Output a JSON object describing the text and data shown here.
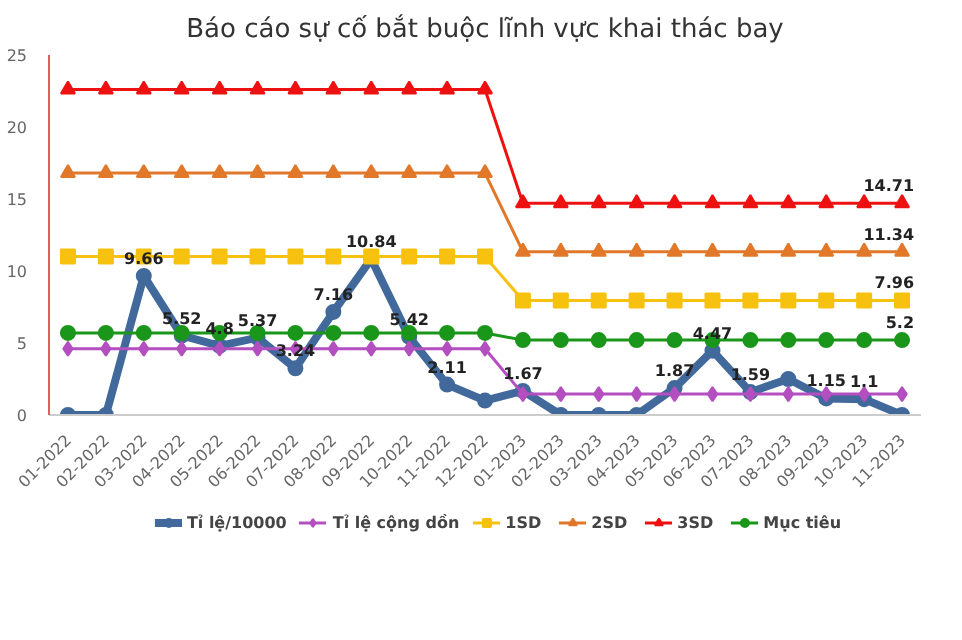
{
  "chart_data": {
    "type": "line",
    "title": "Báo cáo sự cố bắt buộc lĩnh vực khai thác bay",
    "categories": [
      "01-2022",
      "02-2022",
      "03-2022",
      "04-2022",
      "05-2022",
      "06-2022",
      "07-2022",
      "08-2022",
      "09-2022",
      "10-2022",
      "11-2022",
      "12-2022",
      "01-2023",
      "02-2023",
      "03-2023",
      "04-2023",
      "05-2023",
      "06-2023",
      "07-2023",
      "08-2023",
      "09-2023",
      "10-2023",
      "11-2023"
    ],
    "series": [
      {
        "name": "Tỉ lệ/10000",
        "color": "#41699b",
        "marker": "circle",
        "values": [
          0,
          0,
          9.66,
          5.52,
          4.8,
          5.37,
          3.24,
          7.16,
          10.84,
          5.42,
          2.11,
          1.0,
          1.67,
          0,
          0,
          0,
          1.87,
          4.47,
          1.59,
          2.5,
          1.15,
          1.1,
          0
        ],
        "value_labels": [
          null,
          null,
          "9.66",
          "5.52",
          "4.8",
          "5.37",
          "3.24",
          "7.16",
          "10.84",
          "5.42",
          "2.11",
          null,
          "1.67",
          null,
          null,
          null,
          "1.87",
          "4.47",
          "1.59",
          null,
          "1.15",
          "1.1",
          null
        ]
      },
      {
        "name": "Tỉ lệ cộng dồn",
        "color": "#b44fc0",
        "marker": "diamond",
        "values": [
          4.6,
          4.6,
          4.6,
          4.6,
          4.6,
          4.6,
          4.6,
          4.6,
          4.6,
          4.6,
          4.6,
          4.6,
          1.45,
          1.45,
          1.45,
          1.45,
          1.45,
          1.45,
          1.45,
          1.45,
          1.45,
          1.45,
          1.45
        ]
      },
      {
        "name": "1SD",
        "color": "#f7c10f",
        "marker": "square",
        "values": [
          11,
          11,
          11,
          11,
          11,
          11,
          11,
          11,
          11,
          11,
          11,
          11,
          7.96,
          7.96,
          7.96,
          7.96,
          7.96,
          7.96,
          7.96,
          7.96,
          7.96,
          7.96,
          7.96
        ],
        "value_labels": [
          null,
          null,
          null,
          null,
          null,
          null,
          null,
          null,
          null,
          null,
          null,
          null,
          null,
          null,
          null,
          null,
          null,
          null,
          null,
          null,
          null,
          null,
          "7.96"
        ]
      },
      {
        "name": "2SD",
        "color": "#e1782a",
        "marker": "triangle",
        "values": [
          16.8,
          16.8,
          16.8,
          16.8,
          16.8,
          16.8,
          16.8,
          16.8,
          16.8,
          16.8,
          16.8,
          16.8,
          11.34,
          11.34,
          11.34,
          11.34,
          11.34,
          11.34,
          11.34,
          11.34,
          11.34,
          11.34,
          11.34
        ],
        "value_labels": [
          null,
          null,
          null,
          null,
          null,
          null,
          null,
          null,
          null,
          null,
          null,
          null,
          null,
          null,
          null,
          null,
          null,
          null,
          null,
          null,
          null,
          null,
          "11.34"
        ]
      },
      {
        "name": "3SD",
        "color": "#ee1111",
        "marker": "triangle",
        "values": [
          22.6,
          22.6,
          22.6,
          22.6,
          22.6,
          22.6,
          22.6,
          22.6,
          22.6,
          22.6,
          22.6,
          22.6,
          14.71,
          14.71,
          14.71,
          14.71,
          14.71,
          14.71,
          14.71,
          14.71,
          14.71,
          14.71,
          14.71
        ],
        "value_labels": [
          null,
          null,
          null,
          null,
          null,
          null,
          null,
          null,
          null,
          null,
          null,
          null,
          null,
          null,
          null,
          null,
          null,
          null,
          null,
          null,
          null,
          null,
          "14.71"
        ]
      },
      {
        "name": "Mục tiêu",
        "color": "#1a961a",
        "marker": "circle",
        "values": [
          5.7,
          5.7,
          5.7,
          5.7,
          5.7,
          5.7,
          5.7,
          5.7,
          5.7,
          5.7,
          5.7,
          5.7,
          5.2,
          5.2,
          5.2,
          5.2,
          5.2,
          5.2,
          5.2,
          5.2,
          5.2,
          5.2,
          5.2
        ],
        "value_labels": [
          null,
          null,
          null,
          null,
          null,
          null,
          null,
          null,
          null,
          null,
          null,
          null,
          null,
          null,
          null,
          null,
          null,
          null,
          null,
          null,
          null,
          null,
          "5.2"
        ]
      }
    ],
    "ylim": [
      0,
      25
    ],
    "yticks": [
      0,
      5,
      10,
      15,
      20,
      25
    ],
    "grid": false,
    "legend": "bottom"
  }
}
